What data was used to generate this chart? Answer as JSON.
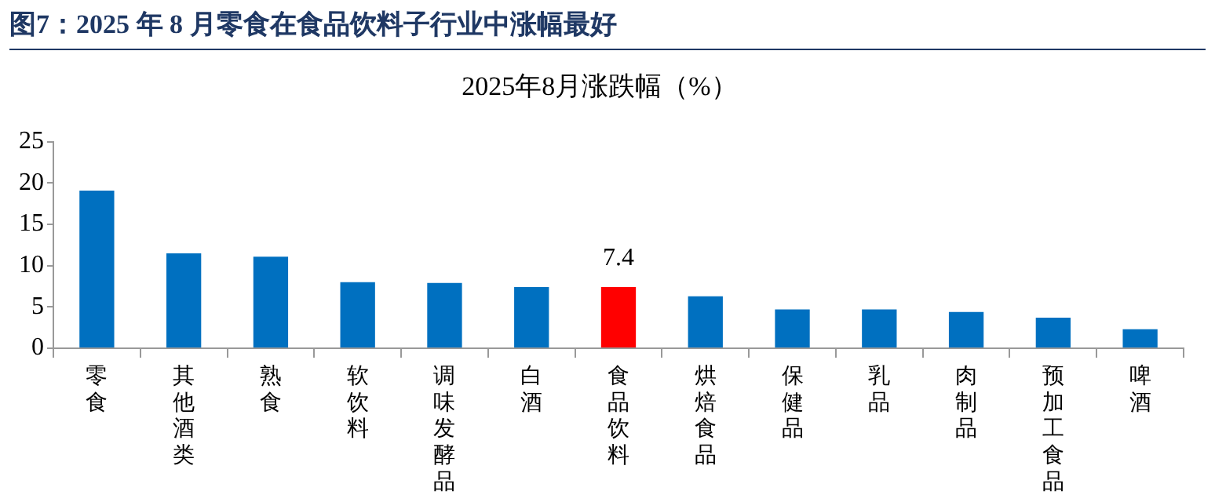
{
  "chart_data": {
    "type": "bar",
    "title": "图7：2025 年 8 月零食在食品饮料子行业中涨幅最好",
    "subtitle": "2025年8月涨跌幅（%）",
    "categories": [
      "零食",
      "其他酒类",
      "熟食",
      "软饮料",
      "调味发酵品",
      "白酒",
      "食品饮料",
      "烘焙食品",
      "保健品",
      "乳品",
      "肉制品",
      "预加工食品",
      "啤酒"
    ],
    "values": [
      19.1,
      11.5,
      11.1,
      8.0,
      7.9,
      7.4,
      7.4,
      6.3,
      4.7,
      4.7,
      4.4,
      3.7,
      2.3
    ],
    "colors": [
      "#0070c0",
      "#0070c0",
      "#0070c0",
      "#0070c0",
      "#0070c0",
      "#0070c0",
      "#ff0000",
      "#0070c0",
      "#0070c0",
      "#0070c0",
      "#0070c0",
      "#0070c0",
      "#0070c0"
    ],
    "value_labels": [
      null,
      null,
      null,
      null,
      null,
      null,
      "7.4",
      null,
      null,
      null,
      null,
      null,
      null
    ],
    "ylim": [
      0,
      25
    ],
    "yticks": [
      0,
      5,
      10,
      15,
      20,
      25
    ],
    "grid": false,
    "legend": false
  }
}
